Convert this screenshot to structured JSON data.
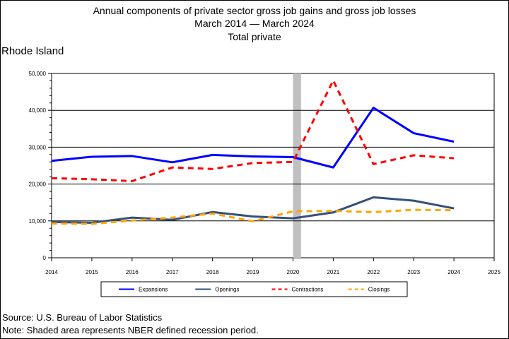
{
  "title": {
    "line1": "Annual components of private sector gross job gains and gross job losses",
    "line2": "March 2014 — March 2024",
    "line3": "Total private"
  },
  "state": "Rhode Island",
  "footer": {
    "source": "Source: U.S. Bureau of Labor Statistics",
    "note": "Note: Shaded area represents NBER defined recession period."
  },
  "chart_data": {
    "type": "line",
    "x": [
      2014,
      2015,
      2016,
      2017,
      2018,
      2019,
      2020,
      2021,
      2022,
      2023,
      2024
    ],
    "xlim": [
      2014,
      2025
    ],
    "x_ticks": [
      "2014",
      "2015",
      "2016",
      "2017",
      "2018",
      "2019",
      "2020",
      "2021",
      "2022",
      "2023",
      "2024",
      "2025"
    ],
    "ylim": [
      0,
      50000
    ],
    "y_ticks": [
      "0",
      "10,000",
      "20,000",
      "30,000",
      "40,000",
      "50,000"
    ],
    "grid": "horizontal",
    "recession": [
      2020.0,
      2020.2
    ],
    "recession_color": "#c0c0c0",
    "legend_position": "bottom",
    "series": [
      {
        "name": "Expansions",
        "color": "#0000ff",
        "dash": "solid",
        "width": 3,
        "values": [
          26300,
          27400,
          27600,
          25900,
          27900,
          27500,
          27300,
          24500,
          40700,
          33800,
          31500
        ]
      },
      {
        "name": "Openings",
        "color": "#34507a",
        "dash": "solid",
        "width": 3,
        "values": [
          9700,
          9500,
          10900,
          10300,
          12400,
          11200,
          10700,
          12300,
          16400,
          15500,
          13400
        ]
      },
      {
        "name": "Contractions",
        "color": "#ff0000",
        "dash": "dashed",
        "width": 3,
        "values": [
          21600,
          21300,
          20800,
          24500,
          24100,
          25700,
          26000,
          48100,
          25400,
          27800,
          27000
        ]
      },
      {
        "name": "Closings",
        "color": "#ffa500",
        "dash": "dashed",
        "width": 3,
        "values": [
          9300,
          9200,
          10100,
          10900,
          12000,
          9900,
          12600,
          12700,
          12400,
          13000,
          12900
        ]
      }
    ]
  }
}
